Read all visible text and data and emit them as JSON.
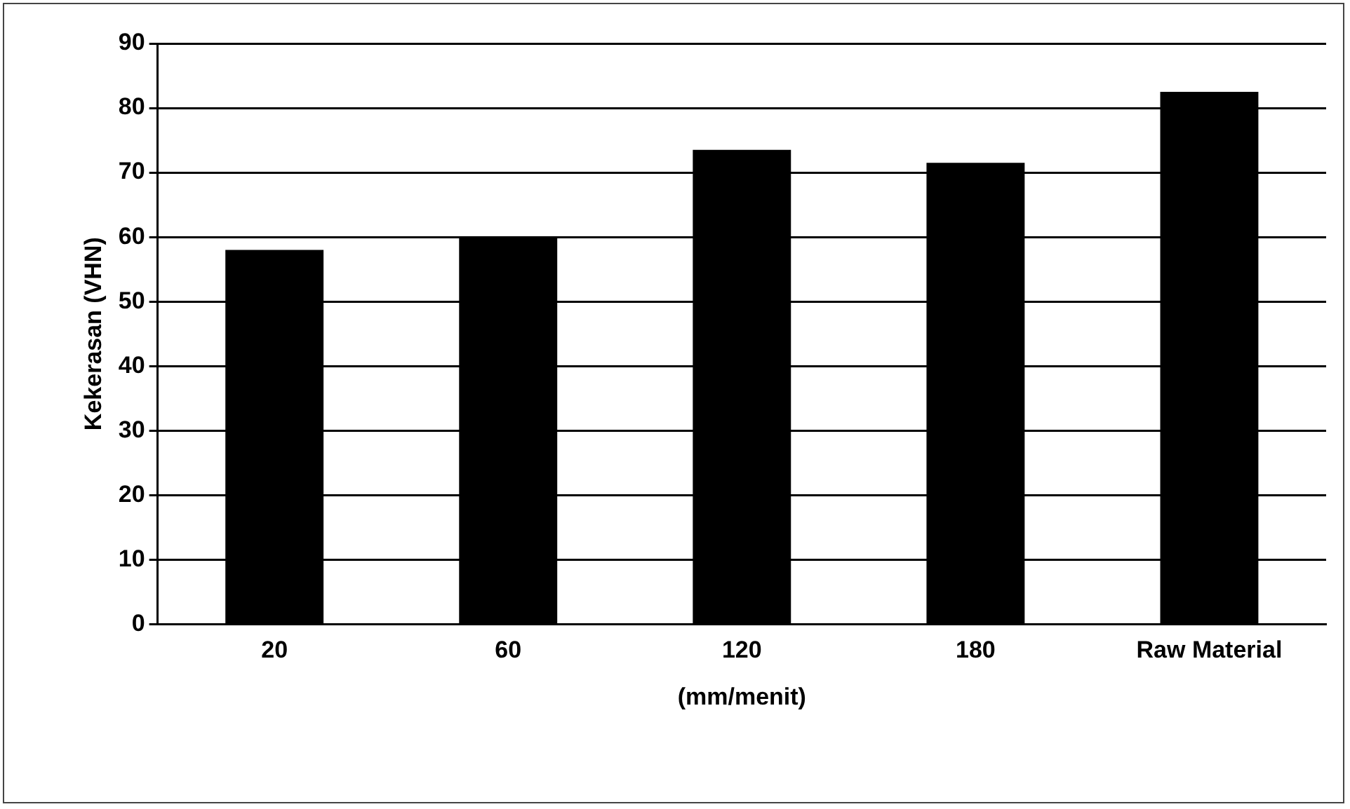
{
  "chart_data": {
    "type": "bar",
    "xlabel": "(mm/menit)",
    "ylabel": "Kekerasan (VHN)",
    "categories": [
      "20",
      "60",
      "120",
      "180",
      "Raw Material"
    ],
    "values": [
      58,
      60,
      73.5,
      71.5,
      82.5
    ],
    "color": "#000000",
    "ylim": [
      0,
      90
    ],
    "yticks": [
      0,
      10,
      20,
      30,
      40,
      50,
      60,
      70,
      80,
      90
    ],
    "grid": "y"
  }
}
